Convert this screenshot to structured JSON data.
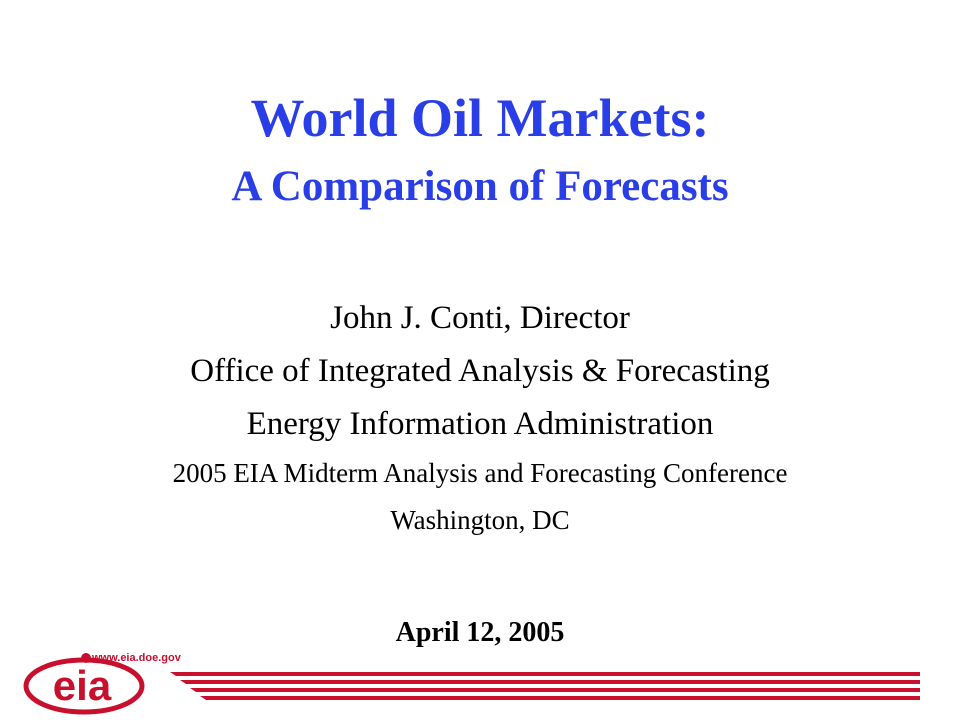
{
  "slide": {
    "title": "World Oil Markets:",
    "subtitle": "A Comparison of Forecasts",
    "presenter_name": "John J. Conti, Director",
    "office": "Office of Integrated Analysis & Forecasting",
    "organization": "Energy Information Administration",
    "conference": "2005 EIA Midterm Analysis and Forecasting Conference",
    "location": "Washington, DC",
    "date": "April 12, 2005"
  },
  "footer": {
    "logo_text": "eia",
    "url": "www.eia.doe.gov"
  },
  "colors": {
    "title": "#2a3ee8",
    "brand_red": "#c8102e",
    "text": "#000000"
  }
}
